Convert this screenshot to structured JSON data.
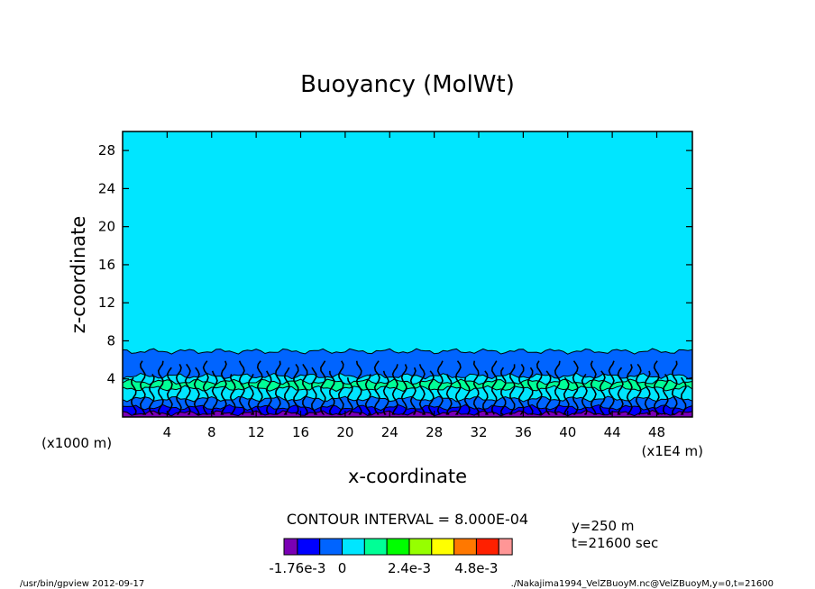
{
  "chart_data": {
    "type": "heatmap",
    "title": "Buoyancy (MolWt)",
    "xlabel": "x-coordinate",
    "ylabel": "z-coordinate",
    "x_unit_left": "(x1000 m)",
    "x_unit_right": "(x1E4 m)",
    "x_ticks": [
      "4",
      "8",
      "12",
      "16",
      "20",
      "24",
      "28",
      "32",
      "36",
      "40",
      "44",
      "48"
    ],
    "x_tick_values": [
      4,
      8,
      12,
      16,
      20,
      24,
      28,
      32,
      36,
      40,
      44,
      48
    ],
    "xlim": [
      0,
      51.2
    ],
    "y_ticks": [
      "4",
      "8",
      "12",
      "16",
      "20",
      "24",
      "28"
    ],
    "y_tick_values": [
      4,
      8,
      12,
      16,
      20,
      24,
      28
    ],
    "ylim": [
      0,
      30
    ],
    "contour_interval_text": "CONTOUR INTERVAL = 8.000E-04",
    "info_lines": [
      "y=250 m",
      "t=21600 sec"
    ],
    "colorbar": {
      "colors": [
        "#7a00b4",
        "#0000ff",
        "#0064ff",
        "#00e6ff",
        "#00ff96",
        "#00ff00",
        "#96ff00",
        "#ffff00",
        "#ff7800",
        "#ff2000",
        "#ff9696"
      ],
      "labels": [
        "-1.76e-3",
        "0",
        "2.4e-3",
        "4.8e-3"
      ],
      "label_positions": [
        0.5,
        2.5,
        5.5,
        8.5
      ]
    },
    "bands": [
      {
        "z_top": 30,
        "color": "#00e6ff"
      },
      {
        "z_top": 6.9,
        "color": "#0064ff"
      },
      {
        "z_top": 4.3,
        "color": "#00e6ff"
      },
      {
        "z_top": 3.7,
        "color": "#00ff96"
      },
      {
        "z_top": 3.0,
        "color": "#00e6ff"
      },
      {
        "z_top": 1.9,
        "color": "#0064ff"
      },
      {
        "z_top": 1.0,
        "color": "#0000ff"
      },
      {
        "z_top": 0.4,
        "color": "#7a00b4"
      }
    ]
  },
  "footer": {
    "left": "/usr/bin/gpview   2012-09-17",
    "right": "./Nakajima1994_VelZBuoyM.nc@VelZBuoyM,y=0,t=21600"
  }
}
